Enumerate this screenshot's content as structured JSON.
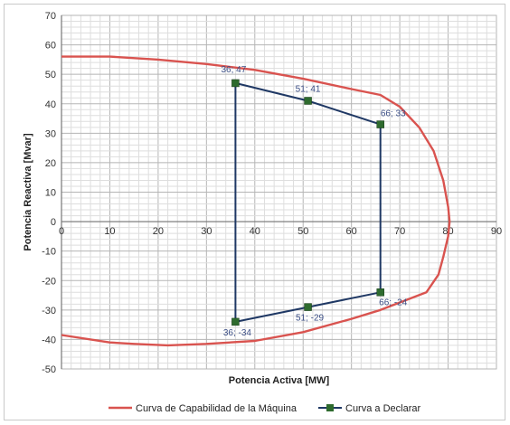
{
  "chart_data": {
    "type": "scatter",
    "xlabel": "Potencia Activa [MW]",
    "ylabel": "Potencia Reactiva [Mvar]",
    "xlim": [
      0,
      90
    ],
    "ylim": [
      -50,
      70
    ],
    "x_ticks": [
      0,
      10,
      20,
      30,
      40,
      50,
      60,
      70,
      80,
      90
    ],
    "y_ticks": [
      -50,
      -40,
      -30,
      -20,
      -10,
      0,
      10,
      20,
      30,
      40,
      50,
      60,
      70
    ],
    "grid": true,
    "legend_position": "bottom",
    "series": [
      {
        "name": "Curva de Capabilidad de la Máquina",
        "color": "#d9534f",
        "marker": "none",
        "x": [
          0,
          10,
          20,
          30,
          40,
          50,
          60,
          66,
          70,
          74,
          77,
          79,
          80,
          80.3,
          80,
          79,
          78,
          75.5,
          66,
          60,
          50,
          40,
          30,
          22,
          15,
          10,
          0
        ],
        "y": [
          56,
          56,
          55,
          53.5,
          51.5,
          48.5,
          45,
          43,
          39,
          32,
          24,
          14,
          5,
          0,
          -5,
          -12,
          -18,
          -24,
          -30,
          -33,
          -37.5,
          -40.5,
          -41.5,
          -42,
          -41.5,
          -41,
          -38.5
        ]
      },
      {
        "name": "Curva a Declarar",
        "color": "#1f3864",
        "marker": "square",
        "marker_color": "#2e6b2e",
        "x": [
          36,
          51,
          66,
          66,
          51,
          36,
          36
        ],
        "y": [
          47,
          41,
          33,
          -24,
          -29,
          -34,
          47
        ]
      }
    ],
    "annotations": [
      {
        "x": 36,
        "y": 47,
        "text": "36; 47"
      },
      {
        "x": 51,
        "y": 41,
        "text": "51; 41"
      },
      {
        "x": 66,
        "y": 33,
        "text": "66; 33"
      },
      {
        "x": 66,
        "y": -24,
        "text": "66; -24"
      },
      {
        "x": 51,
        "y": -29,
        "text": "51; -29"
      },
      {
        "x": 36,
        "y": -34,
        "text": "36; -34"
      }
    ]
  }
}
